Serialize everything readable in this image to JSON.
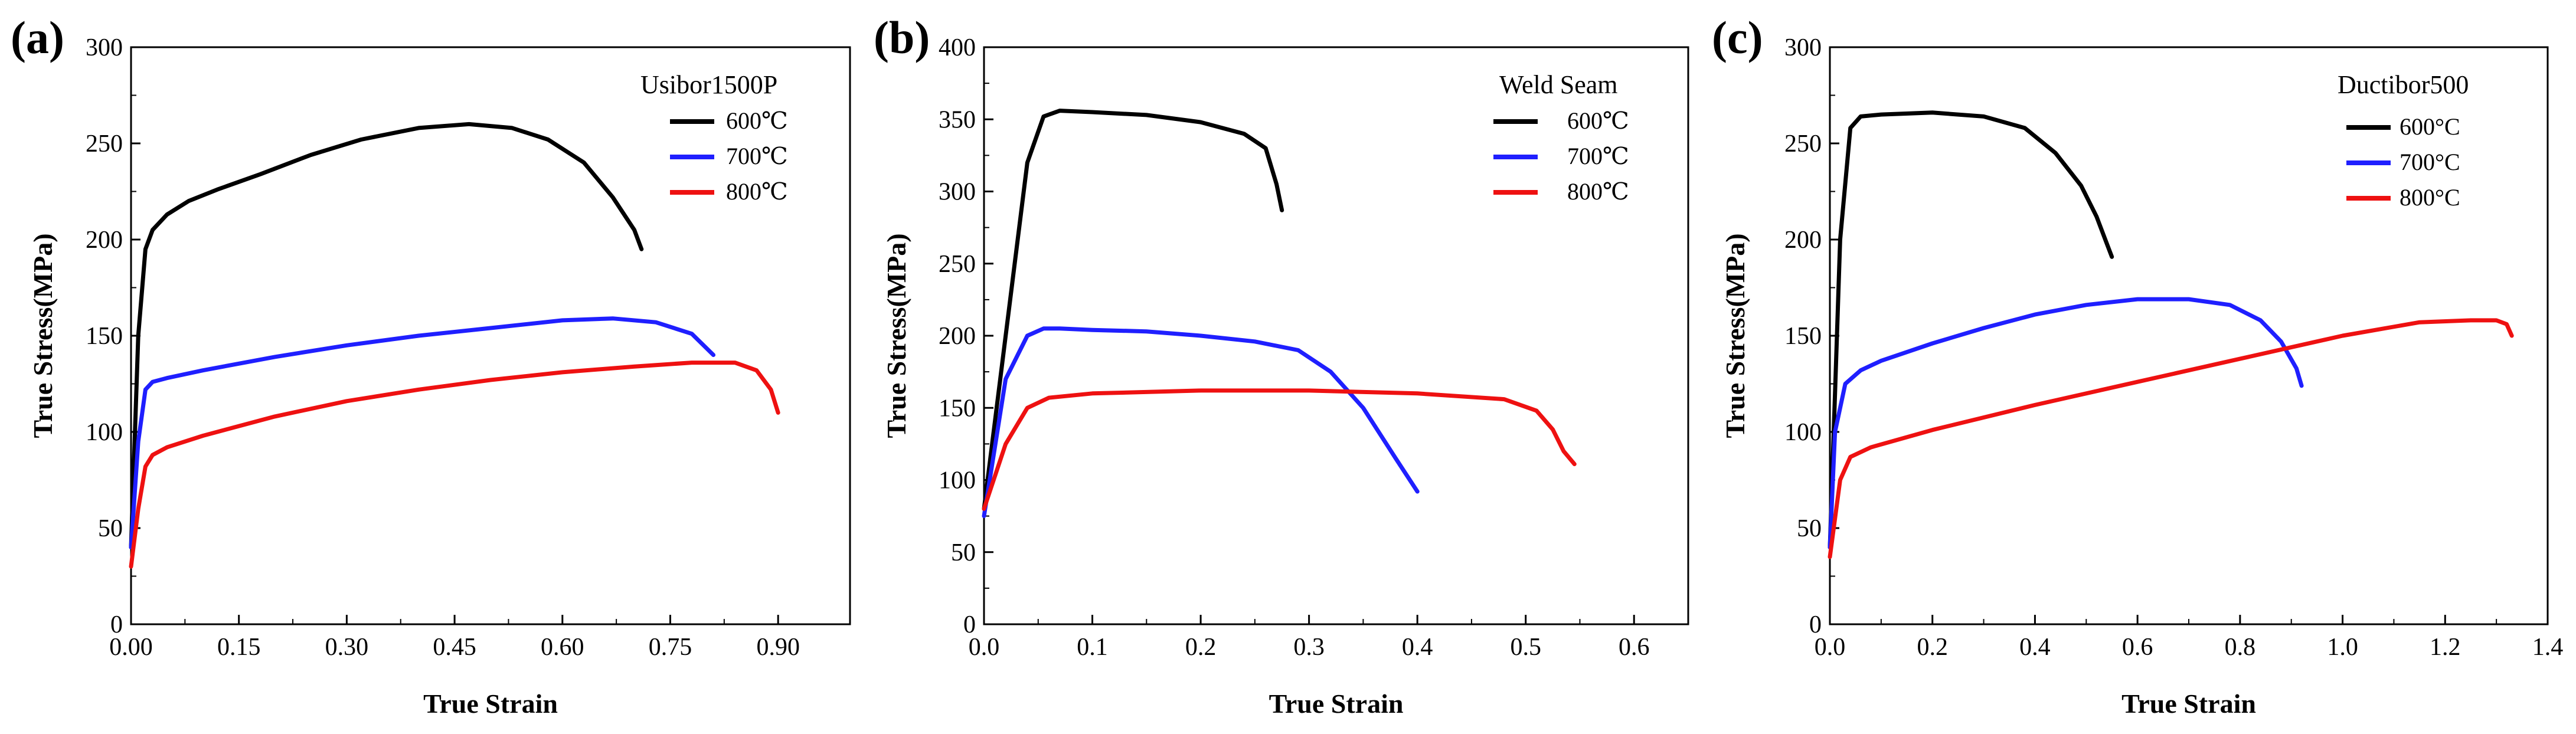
{
  "chart_data": [
    {
      "type": "line",
      "panel_label": "(a)",
      "legend_title": "Usibor1500P",
      "xlabel": "True Strain",
      "ylabel": "True Stress(MPa)",
      "xlim": [
        0,
        1.0
      ],
      "ylim": [
        0,
        300
      ],
      "xticks": [
        0.0,
        0.15,
        0.3,
        0.45,
        0.6,
        0.75,
        0.9
      ],
      "xtick_labels": [
        "0.00",
        "0.15",
        "0.30",
        "0.45",
        "0.60",
        "0.75",
        "0.90"
      ],
      "yticks": [
        0,
        50,
        100,
        150,
        200,
        250,
        300
      ],
      "ytick_labels": [
        "0",
        "50",
        "100",
        "150",
        "200",
        "250",
        "300"
      ],
      "series": [
        {
          "name": "600℃",
          "color": "#000000",
          "x": [
            0.0,
            0.01,
            0.02,
            0.03,
            0.05,
            0.08,
            0.12,
            0.18,
            0.25,
            0.32,
            0.4,
            0.47,
            0.53,
            0.58,
            0.63,
            0.67,
            0.7,
            0.71
          ],
          "y": [
            40,
            150,
            195,
            205,
            213,
            220,
            226,
            234,
            244,
            252,
            258,
            260,
            258,
            252,
            240,
            222,
            205,
            195
          ]
        },
        {
          "name": "700℃",
          "color": "#1f1fff",
          "x": [
            0.0,
            0.01,
            0.02,
            0.03,
            0.05,
            0.1,
            0.2,
            0.3,
            0.4,
            0.5,
            0.6,
            0.67,
            0.73,
            0.78,
            0.81
          ],
          "y": [
            40,
            95,
            122,
            126,
            128,
            132,
            139,
            145,
            150,
            154,
            158,
            159,
            157,
            151,
            140
          ]
        },
        {
          "name": "800℃",
          "color": "#ee1111",
          "x": [
            0.0,
            0.01,
            0.02,
            0.03,
            0.05,
            0.1,
            0.2,
            0.3,
            0.4,
            0.5,
            0.6,
            0.7,
            0.78,
            0.84,
            0.87,
            0.89,
            0.9
          ],
          "y": [
            30,
            60,
            82,
            88,
            92,
            98,
            108,
            116,
            122,
            127,
            131,
            134,
            136,
            136,
            132,
            122,
            110
          ]
        }
      ]
    },
    {
      "type": "line",
      "panel_label": "(b)",
      "legend_title": "Weld Seam",
      "xlabel": "True Strain",
      "ylabel": "True Stress(MPa)",
      "xlim": [
        0,
        0.65
      ],
      "ylim": [
        0,
        400
      ],
      "xticks": [
        0.0,
        0.1,
        0.2,
        0.3,
        0.4,
        0.5,
        0.6
      ],
      "xtick_labels": [
        "0.0",
        "0.1",
        "0.2",
        "0.3",
        "0.4",
        "0.5",
        "0.6"
      ],
      "yticks": [
        0,
        50,
        100,
        150,
        200,
        250,
        300,
        350,
        400
      ],
      "ytick_labels": [
        "0",
        "50",
        "100",
        "150",
        "200",
        "250",
        "300",
        "350",
        "400"
      ],
      "series": [
        {
          "name": "600℃",
          "color": "#000000",
          "x": [
            0.0,
            0.02,
            0.04,
            0.055,
            0.07,
            0.1,
            0.15,
            0.2,
            0.24,
            0.26,
            0.27,
            0.275
          ],
          "y": [
            80,
            200,
            320,
            352,
            356,
            355,
            353,
            348,
            340,
            330,
            305,
            287
          ]
        },
        {
          "name": "700℃",
          "color": "#1f1fff",
          "x": [
            0.0,
            0.02,
            0.04,
            0.055,
            0.07,
            0.1,
            0.15,
            0.2,
            0.25,
            0.29,
            0.32,
            0.35,
            0.38,
            0.4
          ],
          "y": [
            75,
            170,
            200,
            205,
            205,
            204,
            203,
            200,
            196,
            190,
            175,
            150,
            115,
            92
          ]
        },
        {
          "name": "800℃",
          "color": "#ee1111",
          "x": [
            0.0,
            0.02,
            0.04,
            0.06,
            0.1,
            0.2,
            0.3,
            0.4,
            0.48,
            0.51,
            0.525,
            0.535,
            0.545
          ],
          "y": [
            80,
            125,
            150,
            157,
            160,
            162,
            162,
            160,
            156,
            148,
            135,
            120,
            111
          ]
        }
      ]
    },
    {
      "type": "line",
      "panel_label": "(c)",
      "legend_title": "Ductibor500",
      "xlabel": "True Strain",
      "ylabel": "True Stress(MPa)",
      "xlim": [
        0,
        1.4
      ],
      "ylim": [
        0,
        300
      ],
      "xticks": [
        0.0,
        0.2,
        0.4,
        0.6,
        0.8,
        1.0,
        1.2,
        1.4
      ],
      "xtick_labels": [
        "0.0",
        "0.2",
        "0.4",
        "0.6",
        "0.8",
        "1.0",
        "1.2",
        "1.4"
      ],
      "yticks": [
        0,
        50,
        100,
        150,
        200,
        250,
        300
      ],
      "ytick_labels": [
        "0",
        "50",
        "100",
        "150",
        "200",
        "250",
        "300"
      ],
      "series": [
        {
          "name": "600°C",
          "color": "#000000",
          "x": [
            0.0,
            0.02,
            0.04,
            0.06,
            0.1,
            0.2,
            0.3,
            0.38,
            0.44,
            0.49,
            0.52,
            0.54,
            0.55
          ],
          "y": [
            40,
            200,
            258,
            264,
            265,
            266,
            264,
            258,
            245,
            228,
            212,
            198,
            191
          ]
        },
        {
          "name": "700°C",
          "color": "#1f1fff",
          "x": [
            0.0,
            0.01,
            0.03,
            0.06,
            0.1,
            0.2,
            0.3,
            0.4,
            0.5,
            0.6,
            0.7,
            0.78,
            0.84,
            0.88,
            0.91,
            0.92
          ],
          "y": [
            40,
            100,
            125,
            132,
            137,
            146,
            154,
            161,
            166,
            169,
            169,
            166,
            158,
            147,
            133,
            124
          ]
        },
        {
          "name": "800°C",
          "color": "#ee1111",
          "x": [
            0.0,
            0.01,
            0.02,
            0.04,
            0.08,
            0.2,
            0.4,
            0.6,
            0.8,
            1.0,
            1.15,
            1.25,
            1.3,
            1.32,
            1.33
          ],
          "y": [
            35,
            55,
            75,
            87,
            92,
            101,
            114,
            126,
            138,
            150,
            157,
            158,
            158,
            156,
            150
          ]
        }
      ]
    }
  ]
}
